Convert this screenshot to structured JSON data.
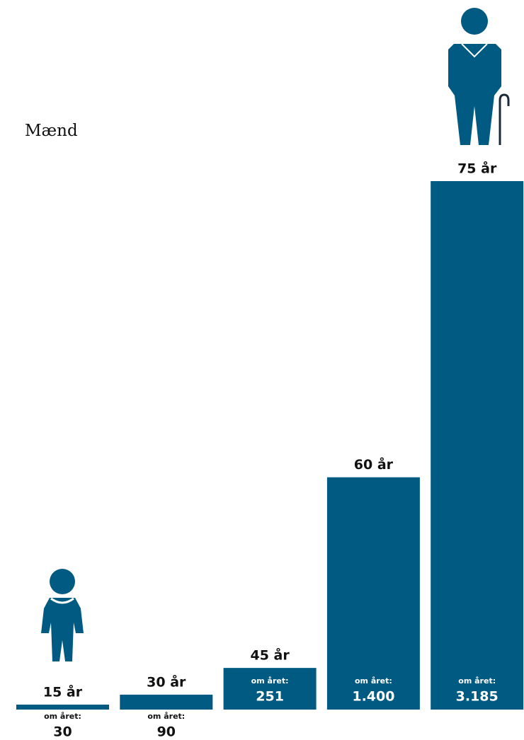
{
  "chart_data": {
    "type": "bar",
    "title": "Mænd",
    "categories": [
      "15 år",
      "30 år",
      "45 år",
      "60 år",
      "75 år"
    ],
    "values": [
      30,
      90,
      251,
      1400,
      3185
    ],
    "value_labels": [
      "30",
      "90",
      "251",
      "1.400",
      "3.185"
    ],
    "value_prefix": "om året:",
    "color": "#005a82"
  }
}
